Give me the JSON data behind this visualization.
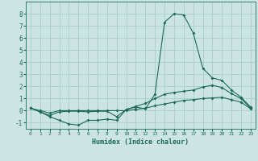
{
  "xlabel": "Humidex (Indice chaleur)",
  "ylabel": "",
  "background_color": "#cde5e2",
  "grid_color": "#aaceca",
  "line_color": "#1a6b5a",
  "x_values": [
    0,
    1,
    2,
    3,
    4,
    5,
    6,
    7,
    8,
    9,
    10,
    11,
    12,
    13,
    14,
    15,
    16,
    17,
    18,
    19,
    20,
    21,
    22,
    23
  ],
  "series1": [
    0.2,
    -0.1,
    -0.5,
    -0.8,
    -1.1,
    -1.2,
    -0.8,
    -0.8,
    -0.7,
    -0.8,
    0.1,
    0.3,
    0.15,
    1.35,
    7.3,
    8.0,
    7.9,
    6.4,
    3.5,
    2.7,
    2.5,
    1.7,
    1.1,
    0.3
  ],
  "series2": [
    0.2,
    -0.1,
    -0.4,
    -0.1,
    -0.05,
    -0.05,
    -0.1,
    -0.05,
    -0.05,
    -0.5,
    0.1,
    0.35,
    0.6,
    1.0,
    1.35,
    1.5,
    1.6,
    1.7,
    1.95,
    2.1,
    1.9,
    1.4,
    1.0,
    0.2
  ],
  "series3": [
    0.2,
    0.0,
    -0.2,
    0.0,
    0.0,
    0.0,
    0.0,
    0.0,
    0.0,
    0.0,
    0.0,
    0.1,
    0.2,
    0.4,
    0.55,
    0.7,
    0.85,
    0.9,
    1.0,
    1.05,
    1.1,
    0.9,
    0.7,
    0.15
  ],
  "ylim": [
    -1.5,
    9.0
  ],
  "xlim": [
    -0.5,
    23.5
  ],
  "yticks": [
    -1,
    0,
    1,
    2,
    3,
    4,
    5,
    6,
    7,
    8
  ],
  "xticks": [
    0,
    1,
    2,
    3,
    4,
    5,
    6,
    7,
    8,
    9,
    10,
    11,
    12,
    13,
    14,
    15,
    16,
    17,
    18,
    19,
    20,
    21,
    22,
    23
  ]
}
